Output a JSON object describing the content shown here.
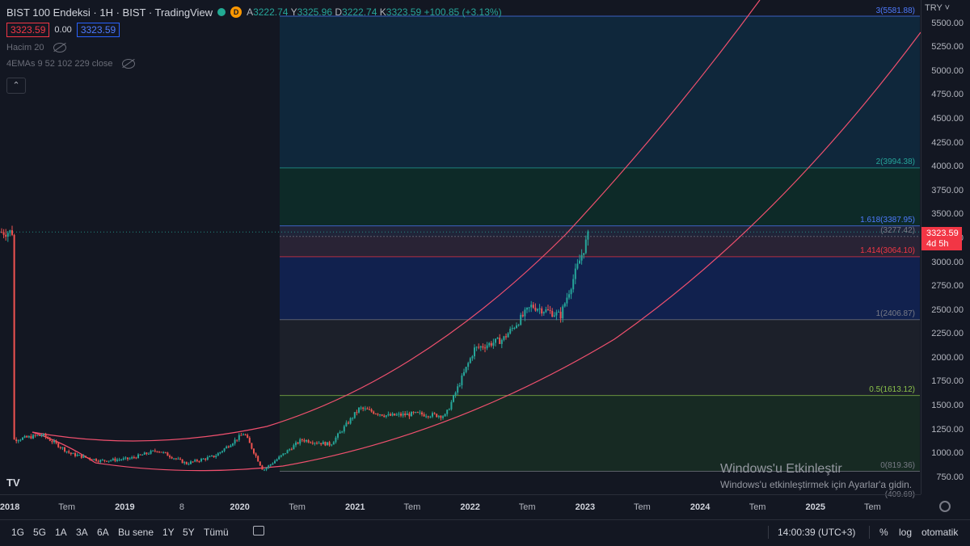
{
  "header": {
    "symbol": "BIST 100 Endeksi · 1H · BIST · TradingView",
    "badge": "D",
    "ohlc": {
      "a_label": "A",
      "a": "3222.74",
      "y_label": "Y",
      "y": "3325.96",
      "d_label": "D",
      "d": "3222.74",
      "k_label": "K",
      "k": "3323.59",
      "change": "+100.85 (+3.13%)"
    },
    "bid": "3323.59",
    "spread": "0.00",
    "ask": "3323.59",
    "indicators": [
      {
        "label": "Hacim 20"
      },
      {
        "label": "4EMAs 9 52 102 229 close"
      }
    ],
    "collapse_icon": "chevron-up-icon"
  },
  "price_axis": {
    "currency": "TRY",
    "ticks": [
      "5500.00",
      "5250.00",
      "5000.00",
      "4750.00",
      "4500.00",
      "4250.00",
      "4000.00",
      "3750.00",
      "3500.00",
      "3250.00",
      "3000.00",
      "2750.00",
      "2500.00",
      "2250.00",
      "2000.00",
      "1750.00",
      "1500.00",
      "1250.00",
      "1000.00",
      "750.00"
    ],
    "last_price": "3323.59",
    "countdown": "4d 5h"
  },
  "fib_levels": [
    {
      "label": "3(5581.88)",
      "value": 5581.88,
      "color": "#4e7bff"
    },
    {
      "label": "2(3994.38)",
      "value": 3994.38,
      "color": "#26a69a"
    },
    {
      "label": "1.618(3387.95)",
      "value": 3387.95,
      "color": "#4e7bff"
    },
    {
      "label": "(3277.42)",
      "value": 3277.42,
      "color": "#787b86"
    },
    {
      "label": "1.414(3064.10)",
      "value": 3064.1,
      "color": "#f23645"
    },
    {
      "label": "1(2406.87)",
      "value": 2406.87,
      "color": "#787b86"
    },
    {
      "label": "0.5(1613.12)",
      "value": 1613.12,
      "color": "#8bc34a"
    },
    {
      "label": "0(819.36)",
      "value": 819.36,
      "color": "#787b86"
    },
    {
      "label": "(409.69)",
      "value": 409.69,
      "color": "#787b86"
    }
  ],
  "time_axis": {
    "ticks": [
      {
        "label": "2018",
        "year": true
      },
      {
        "label": "Tem",
        "year": false
      },
      {
        "label": "2019",
        "year": true
      },
      {
        "label": "8",
        "year": false
      },
      {
        "label": "2020",
        "year": true
      },
      {
        "label": "Tem",
        "year": false
      },
      {
        "label": "2021",
        "year": true
      },
      {
        "label": "Tem",
        "year": false
      },
      {
        "label": "2022",
        "year": true
      },
      {
        "label": "Tem",
        "year": false
      },
      {
        "label": "2023",
        "year": true
      },
      {
        "label": "Tem",
        "year": false
      },
      {
        "label": "2024",
        "year": true
      },
      {
        "label": "Tem",
        "year": false
      },
      {
        "label": "2025",
        "year": true
      },
      {
        "label": "Tem",
        "year": false
      }
    ]
  },
  "bottom_bar": {
    "ranges": [
      "1G",
      "5G",
      "1A",
      "3A",
      "6A",
      "Bu sene",
      "1Y",
      "5Y",
      "Tümü"
    ],
    "time": "14:00:39 (UTC+3)",
    "percent": "%",
    "log": "log",
    "auto": "otomatik"
  },
  "watermark": {
    "title": "Windows'u Etkinleştir",
    "subtitle": "Windows'u etkinleştirmek için Ayarlar'a gidin."
  },
  "colors": {
    "up": "#26a69a",
    "down": "#ef5350",
    "arc": "#f0506e",
    "accent": "#2962ff"
  },
  "chart_data": {
    "type": "candlestick",
    "title": "BIST 100 Endeksi",
    "interval": "1H",
    "ylim": [
      680,
      5650
    ],
    "x_range": [
      "2017-12",
      "2025-12"
    ],
    "log_scale": false,
    "series_close_approx": [
      {
        "t": "2018-01",
        "v": 1150
      },
      {
        "t": "2018-04",
        "v": 1200
      },
      {
        "t": "2018-07",
        "v": 1000
      },
      {
        "t": "2018-10",
        "v": 930
      },
      {
        "t": "2019-01",
        "v": 950
      },
      {
        "t": "2019-04",
        "v": 1040
      },
      {
        "t": "2019-07",
        "v": 900
      },
      {
        "t": "2019-10",
        "v": 980
      },
      {
        "t": "2020-01",
        "v": 1220
      },
      {
        "t": "2020-03",
        "v": 830
      },
      {
        "t": "2020-07",
        "v": 1150
      },
      {
        "t": "2020-10",
        "v": 1100
      },
      {
        "t": "2021-01",
        "v": 1480
      },
      {
        "t": "2021-04",
        "v": 1400
      },
      {
        "t": "2021-07",
        "v": 1420
      },
      {
        "t": "2021-10",
        "v": 1400
      },
      {
        "t": "2022-01",
        "v": 2100
      },
      {
        "t": "2022-04",
        "v": 2200
      },
      {
        "t": "2022-07",
        "v": 2550
      },
      {
        "t": "2022-10",
        "v": 2450
      },
      {
        "t": "2023-01",
        "v": 3323.59
      }
    ]
  }
}
